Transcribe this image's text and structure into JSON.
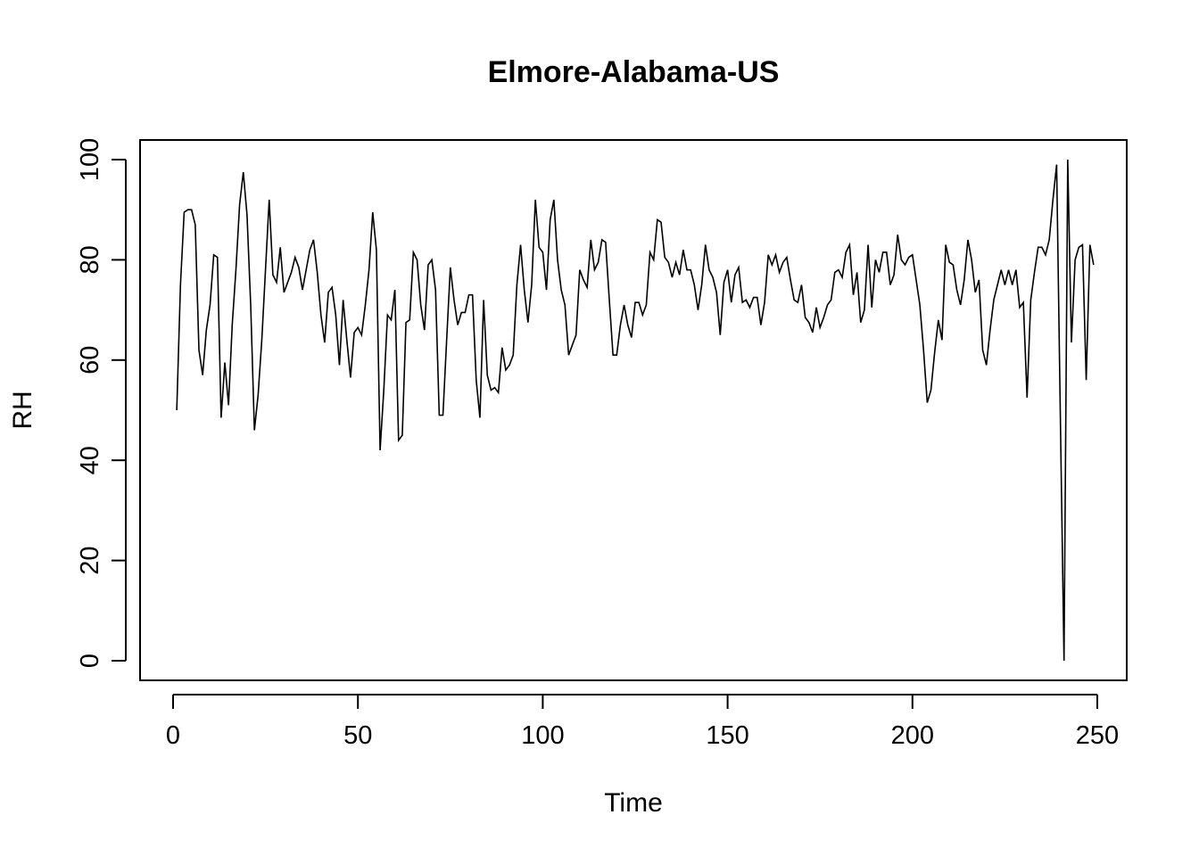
{
  "chart_data": {
    "type": "line",
    "title": "Elmore-Alabama-US",
    "xlabel": "Time",
    "ylabel": "RH",
    "xlim": [
      0,
      250
    ],
    "ylim": [
      0,
      100
    ],
    "x_ticks": [
      0,
      50,
      100,
      150,
      200,
      250
    ],
    "y_ticks": [
      0,
      20,
      40,
      60,
      80,
      100
    ],
    "grid": false,
    "legend": "none",
    "line_color": "#000000",
    "series": [
      {
        "x_start": 1,
        "values": [
          50,
          75,
          89.5,
          90,
          90,
          87,
          62,
          57,
          66,
          71,
          81,
          80.5,
          48.5,
          59.5,
          51,
          67,
          78,
          91,
          97.5,
          89,
          71,
          46,
          53,
          64,
          78,
          92,
          77,
          75.5,
          82.5,
          73.5,
          75.5,
          77.5,
          80.5,
          78.5,
          74,
          78,
          82,
          84,
          77.5,
          69,
          63.5,
          73.5,
          74.5,
          69,
          59,
          72,
          64,
          56.5,
          65.5,
          66.5,
          65,
          71,
          78,
          89.5,
          82,
          42,
          54,
          69,
          68,
          74,
          44,
          45,
          67.5,
          68,
          81.5,
          80,
          71,
          66,
          79,
          80,
          74,
          49,
          49,
          64,
          78.5,
          72,
          67,
          69.5,
          69.5,
          73,
          73,
          56,
          48.5,
          72,
          57,
          54,
          54.5,
          53.5,
          62.5,
          58,
          59,
          61,
          75,
          83,
          74,
          67.5,
          75,
          92,
          82.5,
          81.5,
          74,
          88,
          92,
          80,
          74,
          71,
          61,
          63,
          65,
          78,
          76,
          74.5,
          84,
          78,
          79.5,
          84,
          83.5,
          72,
          61,
          61,
          67,
          71,
          67,
          64.5,
          71.5,
          71.5,
          69,
          71,
          81.5,
          80,
          88,
          87.5,
          80.5,
          79.5,
          76.5,
          79.5,
          77,
          82,
          78,
          78,
          75,
          70,
          75,
          83,
          78,
          76.5,
          73.5,
          65,
          75.5,
          78,
          71.5,
          77,
          78.5,
          71.5,
          72,
          70.5,
          72.5,
          72.5,
          67,
          71.5,
          81,
          79,
          81,
          77.5,
          79.5,
          80.5,
          76,
          72,
          71.5,
          75,
          68.5,
          67.5,
          65.5,
          70.5,
          66.5,
          68.5,
          71,
          72,
          77.5,
          78,
          76.5,
          81.5,
          83,
          73,
          77.5,
          67.5,
          70,
          83,
          70.5,
          80,
          77.5,
          81.5,
          81.5,
          75,
          77,
          85,
          80,
          79,
          80.5,
          81,
          76,
          71,
          62,
          51.5,
          54,
          61.5,
          68,
          64,
          83,
          79.5,
          79,
          74,
          71,
          76,
          84,
          80,
          73.5,
          76,
          62,
          59,
          66,
          72,
          75,
          78,
          75,
          78,
          75,
          78,
          70.5,
          71.5,
          52.5,
          72,
          77.5,
          82.5,
          82.5,
          81,
          84,
          92,
          99,
          49,
          0,
          100,
          63.5,
          80,
          82.5,
          83,
          56,
          83,
          79
        ]
      }
    ]
  }
}
